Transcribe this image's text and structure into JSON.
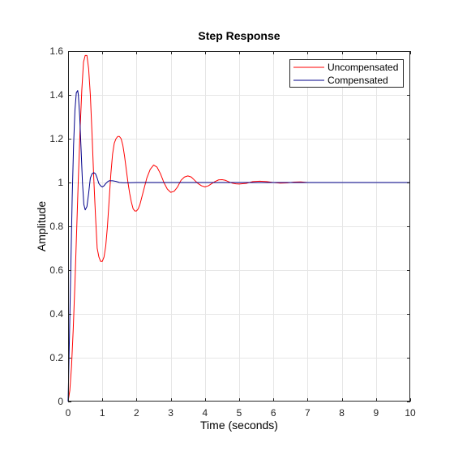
{
  "chart_data": {
    "type": "line",
    "title": "Step Response",
    "xlabel": "Time (seconds)",
    "ylabel": "Amplitude",
    "xlim": [
      0,
      10
    ],
    "ylim": [
      0,
      1.6
    ],
    "xticks": [
      0,
      1,
      2,
      3,
      4,
      5,
      6,
      7,
      8,
      9,
      10
    ],
    "yticks": [
      0,
      0.2,
      0.4,
      0.6,
      0.8,
      1,
      1.2,
      1.4,
      1.6
    ],
    "grid": true,
    "legend_position": "top-right",
    "series": [
      {
        "name": "Uncompensated",
        "color": "#ff0000",
        "x": [
          0,
          0.05,
          0.1,
          0.15,
          0.2,
          0.25,
          0.3,
          0.35,
          0.4,
          0.45,
          0.5,
          0.55,
          0.6,
          0.65,
          0.7,
          0.75,
          0.8,
          0.85,
          0.9,
          0.95,
          1.0,
          1.05,
          1.1,
          1.15,
          1.2,
          1.25,
          1.3,
          1.35,
          1.4,
          1.45,
          1.5,
          1.55,
          1.6,
          1.65,
          1.7,
          1.75,
          1.8,
          1.85,
          1.9,
          1.95,
          2.0,
          2.05,
          2.1,
          2.2,
          2.3,
          2.4,
          2.5,
          2.6,
          2.7,
          2.8,
          2.9,
          3.0,
          3.1,
          3.2,
          3.3,
          3.4,
          3.5,
          3.6,
          3.7,
          3.8,
          3.9,
          4.0,
          4.1,
          4.2,
          4.3,
          4.4,
          4.5,
          4.6,
          4.7,
          4.8,
          4.9,
          5.0,
          5.2,
          5.4,
          5.6,
          5.8,
          6.0,
          6.2,
          6.4,
          6.6,
          6.8,
          7.0,
          7.5,
          8.0,
          8.5,
          9.0,
          9.5,
          10.0
        ],
        "y": [
          0,
          0.05,
          0.16,
          0.33,
          0.54,
          0.78,
          1.02,
          1.24,
          1.42,
          1.55,
          1.58,
          1.58,
          1.52,
          1.4,
          1.22,
          1.02,
          0.85,
          0.7,
          0.66,
          0.64,
          0.64,
          0.66,
          0.71,
          0.8,
          0.92,
          1.04,
          1.13,
          1.18,
          1.2,
          1.21,
          1.21,
          1.2,
          1.17,
          1.12,
          1.06,
          1.0,
          0.95,
          0.91,
          0.88,
          0.87,
          0.87,
          0.88,
          0.9,
          0.96,
          1.02,
          1.06,
          1.08,
          1.07,
          1.04,
          1.0,
          0.97,
          0.955,
          0.96,
          0.98,
          1.01,
          1.025,
          1.03,
          1.025,
          1.01,
          0.995,
          0.985,
          0.98,
          0.985,
          0.995,
          1.005,
          1.012,
          1.013,
          1.01,
          1.003,
          0.997,
          0.994,
          0.993,
          0.996,
          1.004,
          1.006,
          1.004,
          1.0,
          0.997,
          0.998,
          1.002,
          1.003,
          1.0,
          1.0,
          1.0,
          1.0,
          1.0,
          1.0,
          1.0
        ]
      },
      {
        "name": "Compensated",
        "color": "#00008b",
        "x": [
          0,
          0.04,
          0.08,
          0.12,
          0.16,
          0.2,
          0.24,
          0.28,
          0.3,
          0.34,
          0.38,
          0.42,
          0.46,
          0.5,
          0.55,
          0.6,
          0.65,
          0.7,
          0.75,
          0.8,
          0.85,
          0.9,
          0.95,
          1.0,
          1.05,
          1.1,
          1.15,
          1.2,
          1.3,
          1.4,
          1.5,
          1.6,
          1.8,
          2.0,
          2.5,
          3.0,
          4.0,
          5.0,
          6.0,
          7.0,
          8.0,
          9.0,
          10.0
        ],
        "y": [
          0,
          0.3,
          0.62,
          0.93,
          1.17,
          1.33,
          1.41,
          1.42,
          1.4,
          1.3,
          1.15,
          1.0,
          0.9,
          0.875,
          0.89,
          0.95,
          1.02,
          1.04,
          1.045,
          1.04,
          1.02,
          0.995,
          0.985,
          0.98,
          0.985,
          0.995,
          1.003,
          1.008,
          1.008,
          1.005,
          1.0,
          0.999,
          0.999,
          1.0,
          1.0,
          1.0,
          1.0,
          1.0,
          1.0,
          1.0,
          1.0,
          1.0,
          1.0
        ]
      }
    ]
  }
}
